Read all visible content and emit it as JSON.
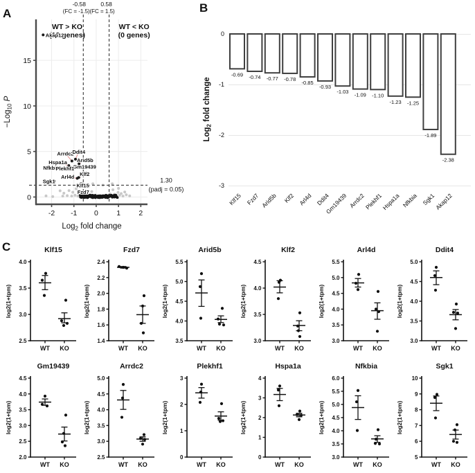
{
  "panels": {
    "a": {
      "letter": "A"
    },
    "b": {
      "letter": "B"
    },
    "c": {
      "letter": "C"
    }
  },
  "chart_data": [
    {
      "id": "volcano",
      "type": "scatter",
      "panel": "A",
      "xlabel": {
        "pre": "Log",
        "sub": "2",
        "post": " fold change"
      },
      "ylabel": {
        "pre": "−Log",
        "sub": "10",
        "post": " P",
        "post_italic": true
      },
      "xlim": [
        -2.7,
        2.3
      ],
      "ylim": [
        -0.8,
        19.5
      ],
      "xticks": [
        -2,
        -1,
        0,
        1,
        2
      ],
      "yticks": [
        0,
        5,
        10,
        15
      ],
      "grid": true,
      "threshold_vlines": [
        -0.58,
        0.58
      ],
      "threshold_hline": 1.3,
      "annotations": {
        "left_threshold": {
          "value": "-0.58",
          "fc": "(FC = -1.5)"
        },
        "right_threshold": {
          "value": "0.58",
          "fc": "(FC = 1.5)"
        },
        "left_group": {
          "line1": "WT > KO",
          "line2": "(13 genes)",
          "color": "#3239a8",
          "x": -1.3
        },
        "right_group": {
          "line1": "WT < KO",
          "line2": "(0 genes)",
          "color": "#e03127",
          "x": 1.7
        },
        "hline_label": {
          "line1": "1.30",
          "line2": "(padj = 0.05)"
        }
      },
      "significant_genes": [
        {
          "name": "Akap12",
          "x": -2.38,
          "y": 17.8,
          "anchor": "start"
        },
        {
          "name": "Arrdc2",
          "x": -1.09,
          "y": 3.95,
          "lx": -1.38,
          "ly": 4.55,
          "anchor": "middle"
        },
        {
          "name": "Ddit4",
          "x": -0.93,
          "y": 4.15,
          "lx": -0.78,
          "ly": 4.75,
          "anchor": "middle"
        },
        {
          "name": "Arid5b",
          "x": -0.77,
          "y": 3.65,
          "lx": -0.5,
          "ly": 3.85,
          "anchor": "middle"
        },
        {
          "name": "Hspa1a",
          "x": -1.23,
          "y": 3.45,
          "lx": -1.72,
          "ly": 3.6,
          "anchor": "middle"
        },
        {
          "name": "Gm19439",
          "x": -1.03,
          "y": 3.25,
          "lx": -0.52,
          "ly": 3.1,
          "anchor": "middle"
        },
        {
          "name": "Nfkbia",
          "x": -1.25,
          "y": 3.05,
          "lx": -2.02,
          "ly": 3.0,
          "anchor": "middle"
        },
        {
          "name": "Plekhf1",
          "x": -1.1,
          "y": 3.05,
          "lx": -1.4,
          "ly": 2.92,
          "anchor": "middle"
        },
        {
          "name": "Klf2",
          "x": -0.78,
          "y": 2.15,
          "lx": -0.52,
          "ly": 2.3,
          "anchor": "middle"
        },
        {
          "name": "Arl4d",
          "x": -0.85,
          "y": 2.05,
          "lx": -1.28,
          "ly": 2.0,
          "anchor": "middle"
        },
        {
          "name": "Sgk1",
          "x": -1.89,
          "y": 1.75,
          "lx": -2.12,
          "ly": 1.52,
          "anchor": "middle"
        },
        {
          "name": "Klf15",
          "x": -0.69,
          "y": 1.45,
          "lx": -0.6,
          "ly": 1.05,
          "anchor": "middle"
        },
        {
          "name": "Fzd7",
          "x": -0.74,
          "y": 0.62,
          "lx": -0.58,
          "ly": 0.35,
          "anchor": "middle"
        }
      ],
      "background_points": [
        [
          -2.25,
          0.12
        ],
        [
          -1.95,
          0.05
        ],
        [
          -1.62,
          0.68
        ],
        [
          -1.5,
          0.1
        ],
        [
          -1.45,
          0.42
        ],
        [
          -1.3,
          0.15
        ],
        [
          -1.22,
          0.7
        ],
        [
          -1.1,
          0.1
        ],
        [
          -1.05,
          0.52
        ],
        [
          -0.95,
          0.2
        ],
        [
          -0.9,
          0.9
        ],
        [
          -0.82,
          0.1
        ],
        [
          -0.76,
          1.28
        ],
        [
          -0.7,
          0.5
        ],
        [
          -0.66,
          0.15
        ],
        [
          -0.62,
          1.5
        ],
        [
          -0.35,
          1.15
        ],
        [
          -0.2,
          0.6
        ],
        [
          -0.15,
          1.45
        ],
        [
          0.3,
          1.3
        ],
        [
          0.62,
          0.35
        ],
        [
          0.68,
          0.1
        ],
        [
          0.72,
          1.45
        ],
        [
          0.75,
          0.8
        ],
        [
          0.82,
          0.3
        ],
        [
          0.9,
          0.12
        ],
        [
          0.98,
          0.5
        ],
        [
          1.0,
          0.95
        ],
        [
          1.05,
          0.2
        ],
        [
          1.12,
          0.38
        ],
        [
          1.2,
          0.1
        ],
        [
          1.28,
          0.55
        ],
        [
          1.35,
          0.25
        ],
        [
          1.5,
          0.12
        ]
      ],
      "dense_band": {
        "x_min": -0.72,
        "x_max": 0.95,
        "count": 115,
        "y_spread": 0.3
      },
      "colors": {
        "significant": "#1a1a1a",
        "leader": "#e58e8e",
        "background": "#c8c8c8",
        "band": "#141414"
      }
    },
    {
      "id": "fold-change-bars",
      "type": "bar",
      "panel": "B",
      "categories": [
        "Klf15",
        "Fzd7",
        "Arid5b",
        "Klf2",
        "Arl4d",
        "Ddit4",
        "Gm19439",
        "Arrdc2",
        "Plekhf1",
        "Hspa1a",
        "Nfkbia",
        "Sgk1",
        "Akap12"
      ],
      "values": [
        -0.69,
        -0.74,
        -0.77,
        -0.78,
        -0.85,
        -0.93,
        -1.03,
        -1.09,
        -1.1,
        -1.23,
        -1.25,
        -1.89,
        -2.38
      ],
      "value_labels": [
        "-0.69",
        "-0.74",
        "-0.77",
        "-0.78",
        "-0.85",
        "-0.93",
        "-1.03",
        "-1.09",
        "-1.10",
        "-1.23",
        "-1.25",
        "-1.89",
        "-2.38"
      ],
      "ylabel": {
        "pre": "Log",
        "sub": "2",
        "post": " fold change"
      },
      "ylim": [
        0,
        -3
      ],
      "yticks": [
        0,
        -1,
        -2,
        -3
      ],
      "grid": true,
      "bar_fill": "#ffffff",
      "bar_stroke": "#3f3f3f"
    },
    {
      "id": "expression-dot-plots",
      "type": "scatter",
      "panel": "C",
      "ylabel": "log2(1+tpm)",
      "categories": [
        "WT",
        "KO"
      ],
      "plots": [
        {
          "title": "Klf15",
          "ylim": [
            2.5,
            4.0
          ],
          "yticks": [
            "2.5",
            "3.0",
            "3.5",
            "4.0"
          ],
          "wt": {
            "points": [
              3.78,
              3.65,
              3.36
            ],
            "dx": [
              1,
              -4,
              -1
            ],
            "mean": 3.6,
            "err": [
              3.47,
              3.74
            ]
          },
          "ko": {
            "points": [
              3.27,
              2.88,
              2.83,
              2.79
            ],
            "dx": [
              2,
              -4,
              4,
              -1
            ],
            "mean": 2.92,
            "err": [
              2.84,
              3.03
            ]
          }
        },
        {
          "title": "Fzd7",
          "ylim": [
            1.4,
            2.4
          ],
          "yticks": [
            "1.4",
            "1.6",
            "1.8",
            "2.0",
            "2.2",
            "2.4"
          ],
          "wt": {
            "points": [
              2.34,
              2.33,
              2.32
            ],
            "dx": [
              -6,
              0,
              5
            ],
            "mean": 2.33,
            "err": [
              2.32,
              2.34
            ]
          },
          "ko": {
            "points": [
              1.97,
              1.84,
              1.62,
              1.5
            ],
            "dx": [
              2,
              0,
              -2,
              1
            ],
            "mean": 1.73,
            "err": [
              1.62,
              1.84
            ]
          }
        },
        {
          "title": "Arid5b",
          "ylim": [
            3.5,
            5.5
          ],
          "yticks": [
            "3.5",
            "4.0",
            "4.5",
            "5.0",
            "5.5"
          ],
          "wt": {
            "points": [
              5.2,
              4.87,
              4.07
            ],
            "dx": [
              0,
              -2,
              -1
            ],
            "mean": 4.71,
            "err": [
              4.37,
              5.04
            ]
          },
          "ko": {
            "points": [
              4.32,
              4.05,
              3.92,
              3.9
            ],
            "dx": [
              2,
              -4,
              -2,
              4
            ],
            "mean": 4.04,
            "err": [
              3.96,
              4.13
            ]
          }
        },
        {
          "title": "Klf2",
          "ylim": [
            3.0,
            4.5
          ],
          "yticks": [
            "3.0",
            "3.5",
            "4.0",
            "4.5"
          ],
          "wt": {
            "points": [
              4.15,
              4.11,
              3.8
            ],
            "dx": [
              1,
              -1,
              -2
            ],
            "mean": 4.02,
            "err": [
              3.91,
              4.14
            ]
          },
          "ko": {
            "points": [
              3.53,
              3.28,
              3.19,
              3.08
            ],
            "dx": [
              1,
              -2,
              -1,
              1
            ],
            "mean": 3.29,
            "err": [
              3.19,
              3.38
            ]
          }
        },
        {
          "title": "Arl4d",
          "ylim": [
            3.0,
            5.5
          ],
          "yticks": [
            "3.0",
            "3.5",
            "4.0",
            "4.5",
            "5.0",
            "5.5"
          ],
          "wt": {
            "points": [
              5.1,
              4.82,
              4.62
            ],
            "dx": [
              1,
              -3,
              0
            ],
            "mean": 4.83,
            "err": [
              4.7,
              4.97
            ]
          },
          "ko": {
            "points": [
              4.56,
              4.0,
              3.92,
              3.3
            ],
            "dx": [
              1,
              -2,
              2,
              0
            ],
            "mean": 3.95,
            "err": [
              3.68,
              4.2
            ]
          }
        },
        {
          "title": "Ddit4",
          "ylim": [
            3.0,
            5.0
          ],
          "yticks": [
            "3.0",
            "3.5",
            "4.0",
            "4.5",
            "5.0"
          ],
          "wt": {
            "points": [
              4.86,
              4.65,
              4.28
            ],
            "dx": [
              0,
              -2,
              -1
            ],
            "mean": 4.6,
            "err": [
              4.42,
              4.77
            ]
          },
          "ko": {
            "points": [
              3.93,
              3.72,
              3.7,
              3.31
            ],
            "dx": [
              1,
              -3,
              3,
              0
            ],
            "mean": 3.66,
            "err": [
              3.53,
              3.79
            ]
          }
        },
        {
          "title": "Gm19439",
          "ylim": [
            2.0,
            4.5
          ],
          "yticks": [
            "2.0",
            "2.5",
            "3.0",
            "3.5",
            "4.0",
            "4.5"
          ],
          "wt": {
            "points": [
              3.93,
              3.67,
              3.62
            ],
            "dx": [
              0,
              -4,
              3
            ],
            "mean": 3.74,
            "err": [
              3.64,
              3.84
            ]
          },
          "ko": {
            "points": [
              3.33,
              2.75,
              2.48,
              2.36
            ],
            "dx": [
              2,
              -1,
              -3,
              1
            ],
            "mean": 2.73,
            "err": [
              2.51,
              2.95
            ]
          }
        },
        {
          "title": "Arrdc2",
          "ylim": [
            2.5,
            5.0
          ],
          "yticks": [
            "2.5",
            "3.0",
            "3.5",
            "4.0",
            "4.5",
            "5.0"
          ],
          "wt": {
            "points": [
              4.8,
              4.37,
              3.76
            ],
            "dx": [
              0,
              -1,
              -2
            ],
            "mean": 4.31,
            "err": [
              4.01,
              4.61
            ]
          },
          "ko": {
            "points": [
              3.21,
              3.09,
              3.06,
              2.91
            ],
            "dx": [
              2,
              -3,
              3,
              0
            ],
            "mean": 3.07,
            "err": [
              3.0,
              3.14
            ]
          }
        },
        {
          "title": "Plekhf1",
          "ylim": [
            0,
            3
          ],
          "yticks": [
            "0",
            "1",
            "2",
            "3"
          ],
          "wt": {
            "points": [
              2.77,
              2.47,
              2.08
            ],
            "dx": [
              0,
              -1,
              -2
            ],
            "mean": 2.44,
            "err": [
              2.24,
              2.64
            ]
          },
          "ko": {
            "points": [
              2.03,
              1.47,
              1.38,
              1.35
            ],
            "dx": [
              1,
              -3,
              3,
              -1
            ],
            "mean": 1.56,
            "err": [
              1.4,
              1.72
            ]
          }
        },
        {
          "title": "Hspa1a",
          "ylim": [
            0,
            4
          ],
          "yticks": [
            "0",
            "1",
            "2",
            "3",
            "4"
          ],
          "wt": {
            "points": [
              3.6,
              3.4,
              2.6
            ],
            "dx": [
              0,
              -2,
              -1
            ],
            "mean": 3.17,
            "err": [
              2.86,
              3.48
            ]
          },
          "ko": {
            "points": [
              2.33,
              2.15,
              2.12,
              1.9
            ],
            "dx": [
              1,
              -3,
              3,
              0
            ],
            "mean": 2.13,
            "err": [
              2.04,
              2.22
            ]
          }
        },
        {
          "title": "Nfkbia",
          "ylim": [
            3.0,
            6.0
          ],
          "yticks": [
            "3.0",
            "3.5",
            "4.0",
            "4.5",
            "5.0",
            "5.5",
            "6.0"
          ],
          "wt": {
            "points": [
              5.53,
              5.1,
              4.01
            ],
            "dx": [
              0,
              -2,
              -1
            ],
            "mean": 4.88,
            "err": [
              4.43,
              5.33
            ]
          },
          "ko": {
            "points": [
              4.04,
              3.68,
              3.52,
              3.5
            ],
            "dx": [
              1,
              -2,
              -3,
              3
            ],
            "mean": 3.69,
            "err": [
              3.56,
              3.81
            ]
          }
        },
        {
          "title": "Sgk1",
          "ylim": [
            5,
            10
          ],
          "yticks": [
            "5",
            "6",
            "7",
            "8",
            "9",
            "10"
          ],
          "wt": {
            "points": [
              8.97,
              8.77,
              7.48
            ],
            "dx": [
              1,
              -2,
              -1
            ],
            "mean": 8.41,
            "err": [
              7.94,
              8.87
            ]
          },
          "ko": {
            "points": [
              7.05,
              6.72,
              6.0,
              5.93
            ],
            "dx": [
              2,
              -1,
              -3,
              2
            ],
            "mean": 6.43,
            "err": [
              6.14,
              6.71
            ]
          }
        }
      ]
    }
  ]
}
